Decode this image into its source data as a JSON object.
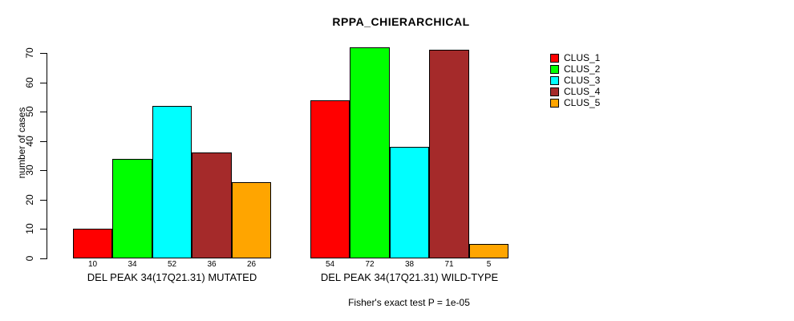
{
  "chart_data": {
    "type": "bar",
    "title": "RPPA_CHIERARCHICAL",
    "ylabel": "number of cases",
    "ylim": [
      0,
      70
    ],
    "yticks": [
      0,
      10,
      20,
      30,
      40,
      50,
      60,
      70
    ],
    "grid": false,
    "legend_position": "right",
    "legend": [
      {
        "label": "CLUS_1",
        "color": "#FF0000"
      },
      {
        "label": "CLUS_2",
        "color": "#00FF00"
      },
      {
        "label": "CLUS_3",
        "color": "#00FFFF"
      },
      {
        "label": "CLUS_4",
        "color": "#A52A2A"
      },
      {
        "label": "CLUS_5",
        "color": "#FFA500"
      }
    ],
    "groups": [
      {
        "label": "DEL PEAK 34(17Q21.31) MUTATED",
        "values": [
          10,
          34,
          52,
          36,
          26
        ]
      },
      {
        "label": "DEL PEAK 34(17Q21.31) WILD-TYPE",
        "values": [
          54,
          72,
          38,
          71,
          5
        ]
      }
    ],
    "footnote": "Fisher's exact test P = 1e-05"
  }
}
